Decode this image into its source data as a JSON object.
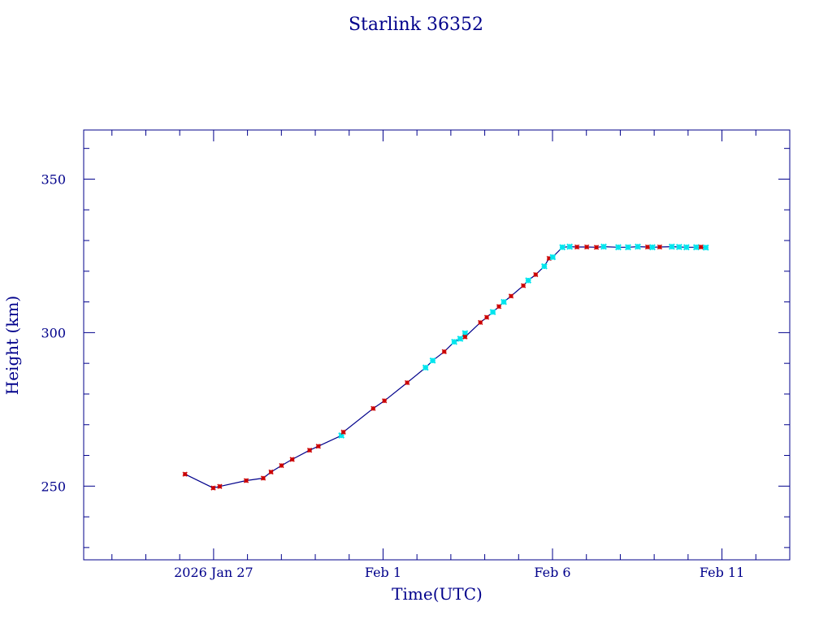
{
  "chart_data": {
    "type": "line",
    "title": "Starlink 36352",
    "xlabel": "Time(UTC)",
    "ylabel": "Height (km)",
    "x_unit": "date (UTC)",
    "xlim": [
      "2026-01-23 04:00",
      "2026-02-13 00:00"
    ],
    "ylim": [
      226,
      366
    ],
    "x_ticks": [
      {
        "label": "2026 Jan 27",
        "value": "2026-01-27 00:00"
      },
      {
        "label": "Feb  1",
        "value": "2026-02-01 00:00"
      },
      {
        "label": "Feb  6",
        "value": "2026-02-06 00:00"
      },
      {
        "label": "Feb 11",
        "value": "2026-02-11 00:00"
      }
    ],
    "y_ticks": [
      {
        "label": "250",
        "value": 250
      },
      {
        "label": "300",
        "value": 300
      },
      {
        "label": "350",
        "value": 350
      }
    ],
    "colors": {
      "axis": "#00008b",
      "line": "#00008b",
      "marker_red": "#cc0000",
      "marker_cyan": "#00e5ee"
    },
    "series": [
      {
        "points": [
          {
            "x": "2026-01-26 03:45",
            "y": 253.9,
            "c": "red"
          },
          {
            "x": "2026-01-26 23:45",
            "y": 249.4,
            "c": "red"
          },
          {
            "x": "2026-01-27 04:20",
            "y": 249.9,
            "c": "red"
          },
          {
            "x": "2026-01-27 23:05",
            "y": 251.8,
            "c": "red"
          },
          {
            "x": "2026-01-28 11:10",
            "y": 252.6,
            "c": "red"
          },
          {
            "x": "2026-01-28 16:40",
            "y": 254.6,
            "c": "red"
          },
          {
            "x": "2026-01-29 00:05",
            "y": 256.7,
            "c": "red"
          },
          {
            "x": "2026-01-29 07:40",
            "y": 258.7,
            "c": "red"
          },
          {
            "x": "2026-01-29 20:00",
            "y": 261.7,
            "c": "red"
          },
          {
            "x": "2026-01-30 02:10",
            "y": 263.0,
            "c": "red"
          },
          {
            "x": "2026-01-30 18:30",
            "y": 266.5,
            "c": "cyan"
          },
          {
            "x": "2026-01-30 19:55",
            "y": 267.6,
            "c": "red"
          },
          {
            "x": "2026-01-31 17:00",
            "y": 275.3,
            "c": "red"
          },
          {
            "x": "2026-02-01 01:00",
            "y": 277.8,
            "c": "red"
          },
          {
            "x": "2026-02-01 17:05",
            "y": 283.7,
            "c": "red"
          },
          {
            "x": "2026-02-02 06:05",
            "y": 288.6,
            "c": "cyan"
          },
          {
            "x": "2026-02-02 11:10",
            "y": 290.9,
            "c": "cyan"
          },
          {
            "x": "2026-02-02 19:20",
            "y": 293.8,
            "c": "red"
          },
          {
            "x": "2026-02-03 02:25",
            "y": 297.0,
            "c": "cyan"
          },
          {
            "x": "2026-02-03 06:40",
            "y": 298.0,
            "c": "cyan"
          },
          {
            "x": "2026-02-03 10:05",
            "y": 299.8,
            "c": "cyan"
          },
          {
            "x": "2026-02-03 10:05",
            "y": 298.6,
            "c": "red"
          },
          {
            "x": "2026-02-03 20:55",
            "y": 303.3,
            "c": "red"
          },
          {
            "x": "2026-02-04 01:25",
            "y": 305.0,
            "c": "red"
          },
          {
            "x": "2026-02-04 05:45",
            "y": 306.7,
            "c": "cyan"
          },
          {
            "x": "2026-02-04 10:05",
            "y": 308.5,
            "c": "red"
          },
          {
            "x": "2026-02-04 13:30",
            "y": 310.0,
            "c": "cyan"
          },
          {
            "x": "2026-02-04 18:40",
            "y": 311.9,
            "c": "red"
          },
          {
            "x": "2026-02-05 03:20",
            "y": 315.3,
            "c": "red"
          },
          {
            "x": "2026-02-05 06:50",
            "y": 317.0,
            "c": "cyan"
          },
          {
            "x": "2026-02-05 12:05",
            "y": 318.9,
            "c": "red"
          },
          {
            "x": "2026-02-05 18:10",
            "y": 321.6,
            "c": "cyan"
          },
          {
            "x": "2026-02-05 21:35",
            "y": 324.2,
            "c": "red"
          },
          {
            "x": "2026-02-06 00:10",
            "y": 324.6,
            "c": "cyan"
          },
          {
            "x": "2026-02-06 07:00",
            "y": 327.8,
            "c": "cyan"
          },
          {
            "x": "2026-02-06 12:10",
            "y": 328.0,
            "c": "cyan"
          },
          {
            "x": "2026-02-06 17:20",
            "y": 327.9,
            "c": "red"
          },
          {
            "x": "2026-02-07 00:15",
            "y": 327.9,
            "c": "red"
          },
          {
            "x": "2026-02-07 07:05",
            "y": 327.8,
            "c": "red"
          },
          {
            "x": "2026-02-07 12:15",
            "y": 328.0,
            "c": "cyan"
          },
          {
            "x": "2026-02-07 22:35",
            "y": 327.8,
            "c": "cyan"
          },
          {
            "x": "2026-02-08 05:30",
            "y": 327.8,
            "c": "cyan"
          },
          {
            "x": "2026-02-08 12:25",
            "y": 328.0,
            "c": "cyan"
          },
          {
            "x": "2026-02-08 19:20",
            "y": 327.9,
            "c": "red"
          },
          {
            "x": "2026-02-08 22:45",
            "y": 327.8,
            "c": "cyan"
          },
          {
            "x": "2026-02-09 03:55",
            "y": 327.9,
            "c": "red"
          },
          {
            "x": "2026-02-09 12:30",
            "y": 328.0,
            "c": "cyan"
          },
          {
            "x": "2026-02-09 17:40",
            "y": 327.9,
            "c": "cyan"
          },
          {
            "x": "2026-02-09 22:50",
            "y": 327.8,
            "c": "cyan"
          },
          {
            "x": "2026-02-10 05:45",
            "y": 327.8,
            "c": "cyan"
          },
          {
            "x": "2026-02-10 09:10",
            "y": 327.9,
            "c": "red"
          },
          {
            "x": "2026-02-10 12:35",
            "y": 327.7,
            "c": "cyan"
          }
        ]
      }
    ]
  }
}
